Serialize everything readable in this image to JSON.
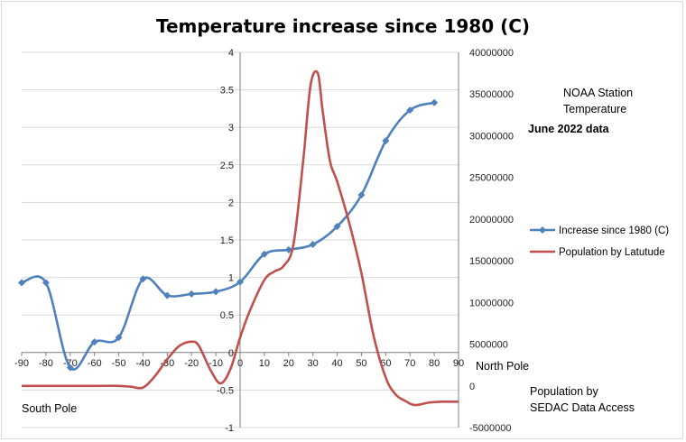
{
  "chart_data": {
    "type": "line",
    "title": "Temperature increase since 1980 (C)",
    "x_ticks": [
      -90,
      -80,
      -70,
      -60,
      -50,
      -40,
      -30,
      -20,
      -10,
      0,
      10,
      20,
      30,
      40,
      50,
      60,
      70,
      80,
      90
    ],
    "xlim": [
      -90,
      90
    ],
    "y_left_ticks": [
      -1,
      -0.5,
      0,
      0.5,
      1,
      1.5,
      2,
      2.5,
      3,
      3.5,
      4
    ],
    "y_left_lim": [
      -1,
      4
    ],
    "y_right_ticks": [
      -5000000,
      0,
      5000000,
      10000000,
      15000000,
      20000000,
      25000000,
      30000000,
      35000000,
      40000000
    ],
    "y_right_lim": [
      -5000000,
      40000000
    ],
    "grid": true,
    "legend_position": "right",
    "series": [
      {
        "name": "Increase since 1980 (C)",
        "axis": "left",
        "color": "#4f81bd",
        "markers": true,
        "x": [
          -90,
          -80,
          -70,
          -60,
          -50,
          -40,
          -30,
          -20,
          -10,
          0,
          10,
          20,
          30,
          40,
          50,
          60,
          70,
          80
        ],
        "y": [
          0.93,
          0.93,
          -0.2,
          0.14,
          0.2,
          0.98,
          0.76,
          0.78,
          0.81,
          0.94,
          1.31,
          1.37,
          1.44,
          1.68,
          2.1,
          2.82,
          3.23,
          3.33
        ]
      },
      {
        "name": "Population by Latutude",
        "axis": "right",
        "color": "#c0504d",
        "markers": false,
        "x": [
          -90,
          -80,
          -70,
          -60,
          -50,
          -45,
          -40,
          -35,
          -30,
          -25,
          -20,
          -17,
          -12,
          -8,
          -4,
          0,
          4,
          10,
          14,
          18,
          22,
          26,
          29,
          32,
          34,
          37,
          40,
          45,
          50,
          55,
          60,
          64,
          68,
          72,
          78,
          84,
          90
        ],
        "y": [
          0,
          0,
          0,
          0,
          0,
          -100000,
          -200000,
          1200000,
          3200000,
          4800000,
          5300000,
          4800000,
          1800000,
          300000,
          2000000,
          5800000,
          9000000,
          12700000,
          13700000,
          14400000,
          17000000,
          27000000,
          36000000,
          37500000,
          33000000,
          27000000,
          24500000,
          19500000,
          13500000,
          6000000,
          1000000,
          -1000000,
          -1800000,
          -2300000,
          -2000000,
          -1900000,
          -1900000
        ]
      }
    ],
    "annotations": {
      "north_pole": "North Pole",
      "south_pole": "South Pole",
      "station_line1": "NOAA Station",
      "station_line2": "Temperature",
      "data_date": "June 2022 data",
      "population_line1": "Population by",
      "population_line2": "SEDAC Data Access"
    }
  }
}
